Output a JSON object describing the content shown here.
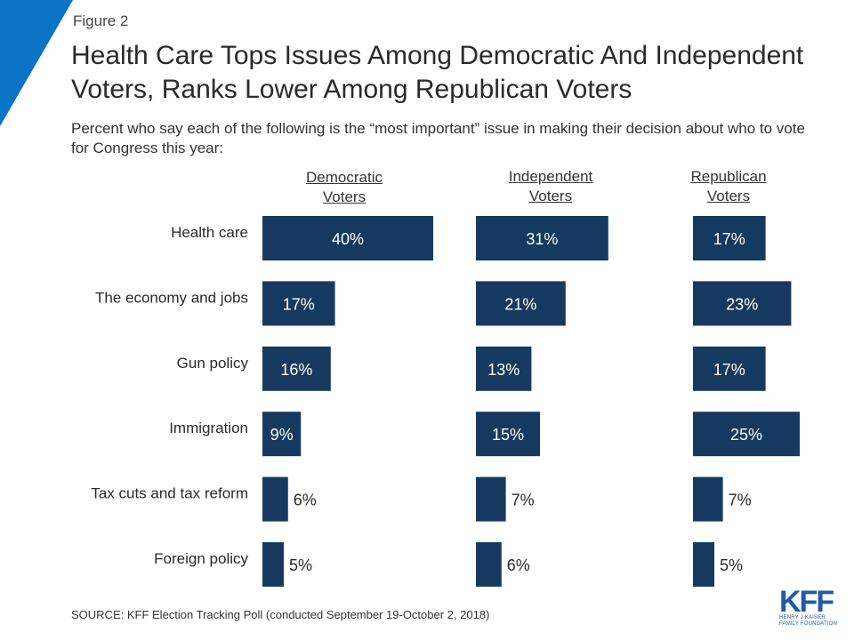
{
  "figure_label": "Figure 2",
  "title": "Health Care Tops Issues Among Democratic And Independent Voters, Ranks Lower Among Republican Voters",
  "subtitle": "Percent who say each of the following is the “most important” issue in making their decision about who to vote for Congress this year:",
  "source": "SOURCE: KFF Election Tracking Poll (conducted September 19-October 2, 2018)",
  "logo": {
    "mark": "KFF",
    "line1": "HENRY J KAISER",
    "line2": "FAMILY FOUNDATION"
  },
  "colors": {
    "bar": "#163a5f",
    "label_inside": "#ffffff",
    "label_outside": "#2a2a2a",
    "accent": "#0a73c5"
  },
  "chart_data": {
    "type": "bar",
    "orientation": "horizontal",
    "categories": [
      "Health care",
      "The economy and jobs",
      "Gun policy",
      "Immigration",
      "Tax cuts and tax reform",
      "Foreign policy"
    ],
    "series": [
      {
        "name_lines": [
          "Democratic",
          "Voters"
        ],
        "values": [
          40,
          17,
          16,
          9,
          6,
          5
        ],
        "labels": [
          "40%",
          "17%",
          "16%",
          "9%",
          "6%",
          "5%"
        ]
      },
      {
        "name_lines": [
          "Independent",
          "Voters"
        ],
        "values": [
          31,
          21,
          13,
          15,
          7,
          6
        ],
        "labels": [
          "31%",
          "21%",
          "13%",
          "15%",
          "7%",
          "6%"
        ]
      },
      {
        "name_lines": [
          "Republican",
          "Voters"
        ],
        "values": [
          17,
          23,
          17,
          25,
          7,
          5
        ],
        "labels": [
          "17%",
          "23%",
          "17%",
          "25%",
          "7%",
          "5%"
        ]
      }
    ],
    "unit": "%"
  }
}
